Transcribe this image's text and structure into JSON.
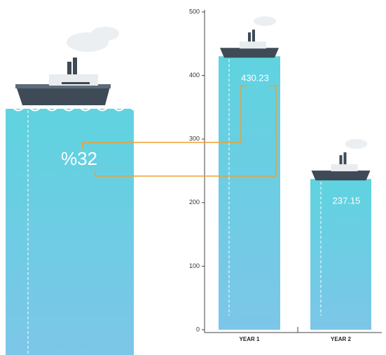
{
  "chart_data": {
    "type": "bar",
    "annotation": "%32",
    "categories": [
      "YEAR 1",
      "YEAR 2"
    ],
    "values": [
      430.23,
      237.15
    ],
    "value_labels": [
      "430.23",
      "237.15"
    ],
    "color": "#5ccfe0",
    "ylim": [
      0,
      500
    ],
    "yticks": [
      0,
      100,
      200,
      300,
      400,
      500
    ],
    "grid": false
  }
}
